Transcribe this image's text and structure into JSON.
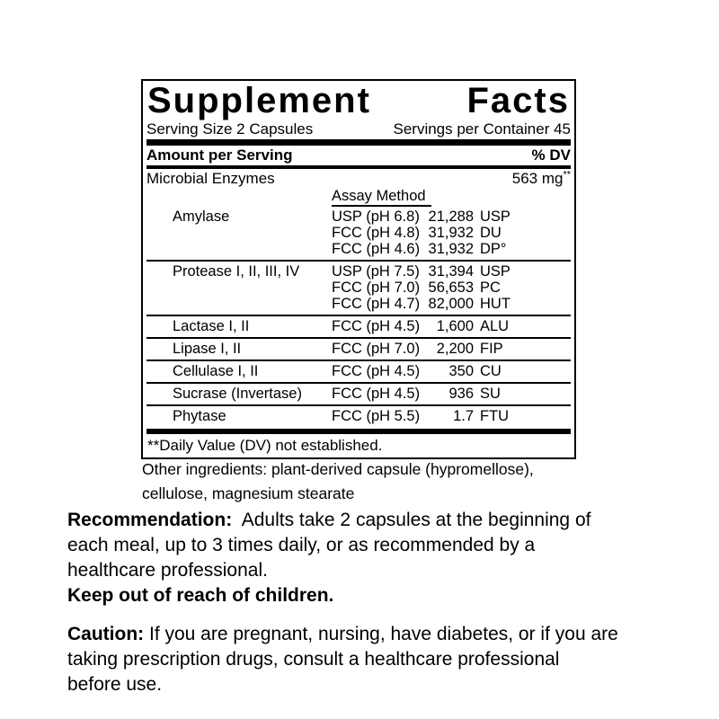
{
  "panel": {
    "title_words": [
      "Supplement",
      "Facts"
    ],
    "serving_size": "Serving Size 2 Capsules",
    "servings_per_container": "Servings per Container 45",
    "amount_header": "Amount per Serving",
    "dv_header": "% DV",
    "total": {
      "name": "Microbial Enzymes",
      "amount": "563 mg",
      "dv_mark": "**"
    },
    "assay_header": "Assay Method",
    "enzymes": [
      {
        "name": "Amylase",
        "assays": [
          {
            "assay": "USP (pH 6.8)",
            "num": "21,288",
            "unit": "USP"
          },
          {
            "assay": "FCC (pH 4.8)",
            "num": "31,932",
            "unit": "DU"
          },
          {
            "assay": "FCC (pH 4.6)",
            "num": "31,932",
            "unit": "DP°"
          }
        ]
      },
      {
        "name": "Protease I, II, III, IV",
        "assays": [
          {
            "assay": "USP (pH 7.5)",
            "num": "31,394",
            "unit": "USP"
          },
          {
            "assay": "FCC (pH 7.0)",
            "num": "56,653",
            "unit": "PC"
          },
          {
            "assay": "FCC (pH 4.7)",
            "num": "82,000",
            "unit": "HUT"
          }
        ]
      },
      {
        "name": "Lactase I, II",
        "assays": [
          {
            "assay": "FCC (pH 4.5)",
            "num": "1,600",
            "unit": "ALU"
          }
        ]
      },
      {
        "name": "Lipase I, II",
        "assays": [
          {
            "assay": "FCC (pH 7.0)",
            "num": "2,200",
            "unit": "FIP"
          }
        ]
      },
      {
        "name": "Cellulase I, II",
        "assays": [
          {
            "assay": "FCC (pH 4.5)",
            "num": "350",
            "unit": "CU"
          }
        ]
      },
      {
        "name": "Sucrase (Invertase)",
        "assays": [
          {
            "assay": "FCC (pH 4.5)",
            "num": "936",
            "unit": "SU"
          }
        ]
      },
      {
        "name": "Phytase",
        "assays": [
          {
            "assay": "FCC (pH 5.5)",
            "num": "1.7",
            "unit": "FTU"
          }
        ]
      }
    ],
    "footnote": "**Daily Value (DV) not established."
  },
  "other_ingredients": "Other ingredients: plant-derived capsule (hypromellose),\ncellulose, magnesium stearate",
  "recommendation": {
    "label": "Recommendation:",
    "text": "  Adults take 2 capsules at the beginning of\neach meal, up to 3 times daily, or as recommended by a\nhealthcare professional."
  },
  "keep_out": "Keep out of reach of children.",
  "caution": {
    "label": "Caution:",
    "text": " If you are pregnant, nursing, have diabetes, or if you are\ntaking prescription drugs, consult a healthcare professional\nbefore use."
  }
}
